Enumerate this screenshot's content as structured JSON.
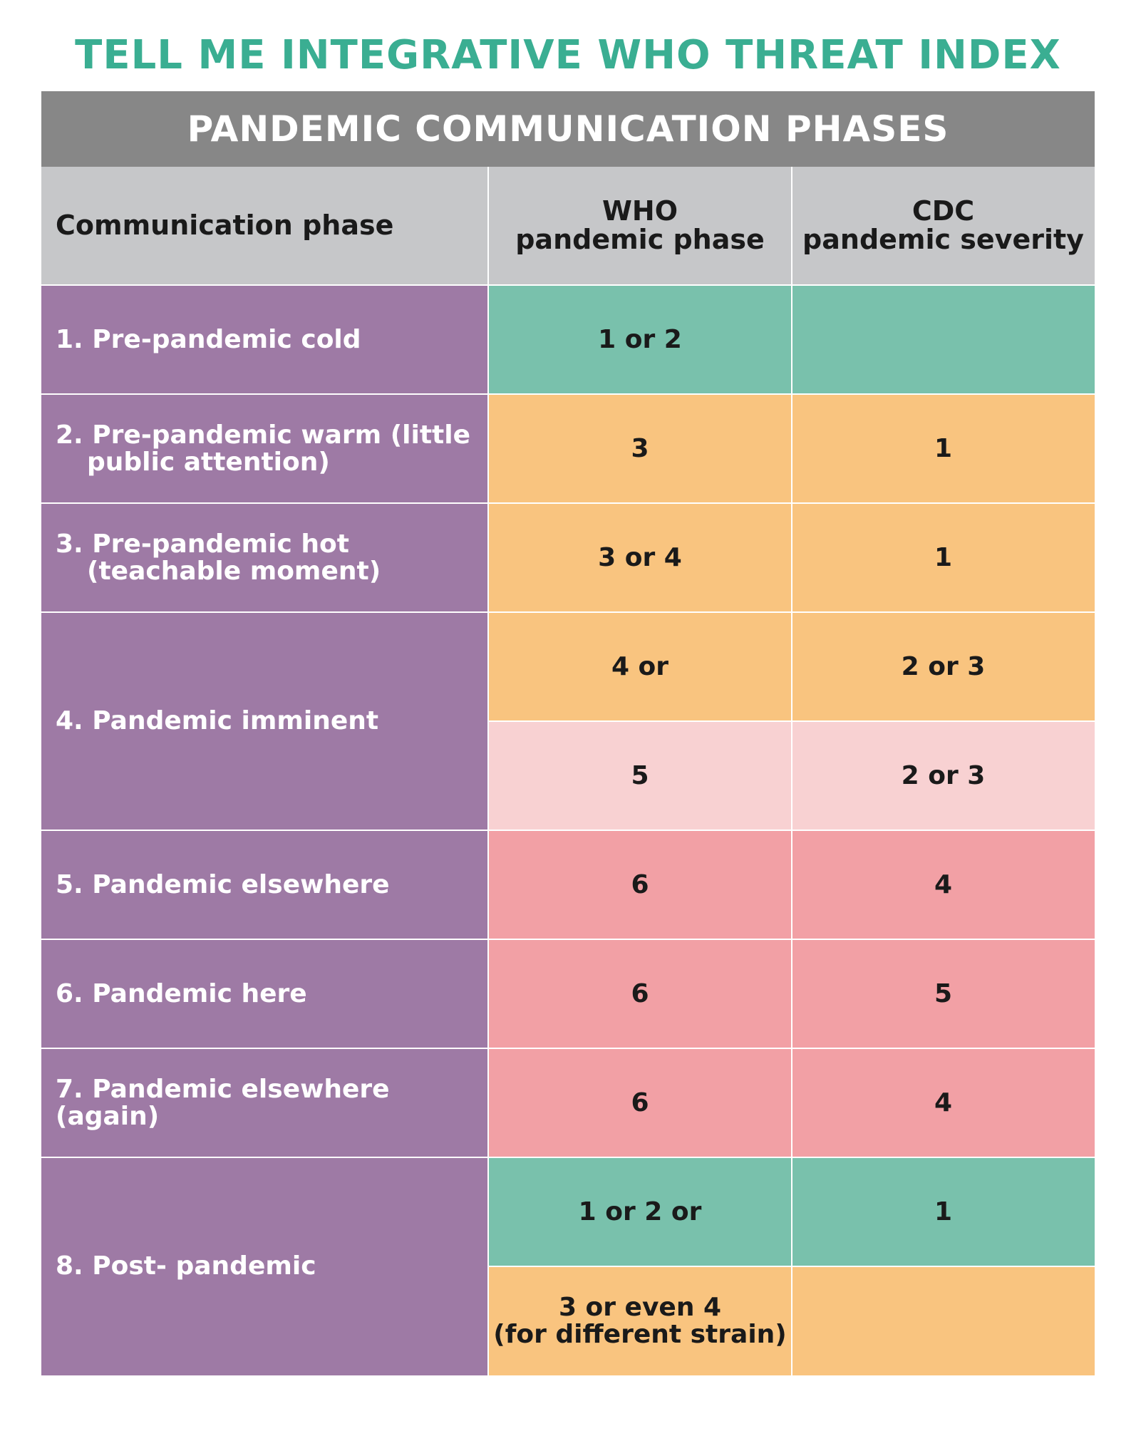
{
  "title": "TELL ME INTEGRATIVE WHO THREAT INDEX",
  "banner": "PANDEMIC COMMUNICATION PHASES",
  "headers": {
    "phase": "Communication phase",
    "who_line1": "WHO",
    "who_line2": "pandemic phase",
    "cdc_line1": "CDC",
    "cdc_line2": "pandemic severity"
  },
  "rows": [
    {
      "phase": "1. Pre-pandemic cold",
      "who": "1 or 2",
      "cdc": ""
    },
    {
      "phase_line1": "2. Pre-pandemic warm (little",
      "phase_line2": "public attention)",
      "who": "3",
      "cdc": "1"
    },
    {
      "phase_line1": "3. Pre-pandemic hot",
      "phase_line2": "(teachable moment)",
      "who": "3 or 4",
      "cdc": "1"
    },
    {
      "phase": "4. Pandemic imminent",
      "who_a": "4 or",
      "cdc_a": "2 or 3",
      "who_b": "5",
      "cdc_b": "2 or 3"
    },
    {
      "phase": "5. Pandemic elsewhere",
      "who": "6",
      "cdc": "4"
    },
    {
      "phase": "6. Pandemic here",
      "who": "6",
      "cdc": "5"
    },
    {
      "phase": "7. Pandemic elsewhere (again)",
      "who": "6",
      "cdc": "4"
    },
    {
      "phase": "8. Post- pandemic",
      "who_a": "1 or 2 or",
      "cdc_a": "1",
      "who_b_line1": "3 or even 4",
      "who_b_line2": "(for different strain)",
      "cdc_b": ""
    }
  ],
  "colors": {
    "title": "#3aae92",
    "banner": "#878787",
    "header": "#c6c7c9",
    "phase": "#9e7aa5",
    "teal": "#79c1ac",
    "orange": "#f9c47f",
    "light_pink": "#f8d1d2",
    "pink": "#f2a0a5"
  }
}
